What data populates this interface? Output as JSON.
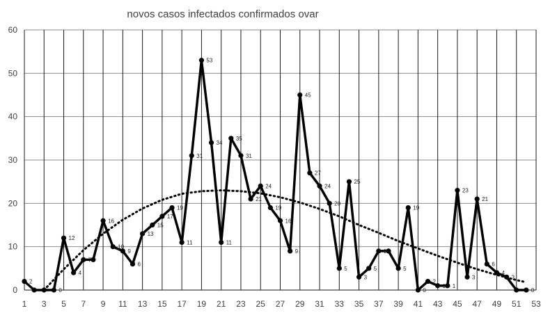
{
  "chart_data": {
    "type": "line",
    "title": "novos casos infectados confirmados ovar",
    "xlabel": "",
    "ylabel": "",
    "ylim": [
      0,
      60
    ],
    "xlim": [
      1,
      53
    ],
    "grid": true,
    "legend": "none",
    "y_ticks": [
      "0",
      "10",
      "20",
      "30",
      "40",
      "50",
      "60"
    ],
    "x_ticks": [
      "1",
      "3",
      "5",
      "7",
      "9",
      "11",
      "13",
      "15",
      "17",
      "19",
      "21",
      "23",
      "25",
      "27",
      "29",
      "31",
      "33",
      "35",
      "37",
      "39",
      "41",
      "43",
      "45",
      "47",
      "49",
      "51",
      "53"
    ],
    "series": [
      {
        "style": "solid-markers",
        "color": "#000000",
        "x": [
          1,
          2,
          3,
          4,
          5,
          6,
          7,
          8,
          9,
          10,
          11,
          12,
          13,
          14,
          15,
          16,
          17,
          18,
          19,
          20,
          21,
          22,
          23,
          24,
          25,
          26,
          27,
          28,
          29,
          30,
          31,
          32,
          33,
          34,
          35,
          36,
          37,
          38,
          39,
          40,
          41,
          42,
          43,
          44,
          45,
          46,
          47,
          48,
          49,
          50,
          51,
          52
        ],
        "values": [
          2,
          0,
          0,
          0,
          12,
          4,
          7,
          7,
          16,
          10,
          9,
          6,
          13,
          15,
          17,
          19,
          11,
          31,
          53,
          34,
          11,
          35,
          31,
          21,
          24,
          19,
          16,
          9,
          45,
          27,
          24,
          20,
          5,
          25,
          3,
          5,
          9,
          9,
          5,
          19,
          0,
          2,
          1,
          1,
          23,
          3,
          21,
          6,
          4,
          3,
          0,
          0
        ],
        "labels": [
          "2",
          "",
          "",
          "0",
          "12",
          "4",
          "7",
          "",
          "16",
          "10",
          "9",
          "6",
          "13",
          "15",
          "17",
          "19",
          "11",
          "31",
          "53",
          "34",
          "11",
          "35",
          "31",
          "21",
          "24",
          "19",
          "16",
          "9",
          "45",
          "27",
          "24",
          "20",
          "5",
          "25",
          "3",
          "5",
          "9",
          "",
          "5",
          "19",
          "0",
          "2",
          "1",
          "1",
          "23",
          "3",
          "21",
          "6",
          "4",
          "3",
          "",
          "0"
        ]
      },
      {
        "style": "dotted-trendline",
        "color": "#000000",
        "x": [
          3,
          5,
          7,
          9,
          11,
          13,
          15,
          17,
          19,
          21,
          23,
          25,
          27,
          29,
          31,
          33,
          35,
          37,
          39,
          41,
          43,
          45,
          47,
          49,
          51,
          52
        ],
        "values": [
          0,
          4.8,
          9.2,
          13,
          16.2,
          18.8,
          20.8,
          22.2,
          22.8,
          23,
          22.8,
          22.3,
          21.4,
          20.2,
          18.7,
          17,
          15,
          13.2,
          11.3,
          9.6,
          7.9,
          6.3,
          4.8,
          3.5,
          2.3,
          1.8
        ]
      }
    ]
  }
}
